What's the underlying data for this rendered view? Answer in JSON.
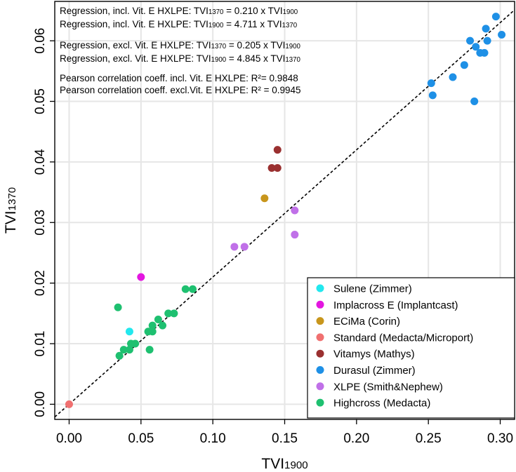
{
  "chart_data": {
    "type": "scatter",
    "xlabel": "TVI1900",
    "ylabel": "TVI1370",
    "xlim": [
      -0.01,
      0.31
    ],
    "ylim": [
      -0.0025,
      0.0665
    ],
    "xticks": [
      0.0,
      0.05,
      0.1,
      0.15,
      0.2,
      0.25,
      0.3
    ],
    "xtick_labels": [
      "0.00",
      "0.05",
      "0.10",
      "0.15",
      "0.20",
      "0.25",
      "0.30"
    ],
    "yticks": [
      0.0,
      0.01,
      0.02,
      0.03,
      0.04,
      0.05,
      0.06
    ],
    "ytick_labels": [
      "0.00",
      "0.01",
      "0.02",
      "0.03",
      "0.04",
      "0.05",
      "0.06"
    ],
    "grid": true,
    "reference_line": {
      "slope": 0.21,
      "intercept": 0,
      "style": "dashed"
    },
    "annotations": [
      "Regression, incl. Vit. E HXLPE: TVI1370 =  0.210 x TVI1900",
      "Regression, incl. Vit. E HXLPE: TVI1900 =  4.711 x TVI1370",
      "Regression, excl. Vit. E HXLPE: TVI1370 =  0.205 x TVI1900",
      "Regression, excl. Vit. E HXLPE: TVI1900 =  4.845 x TVI1370",
      "Pearson correlation coeff. incl. Vit. E HXLPE: R²=  0.9848",
      "Pearson correlation coeff. excl.Vit. E HXLPE: R² =  0.9945"
    ],
    "legend_position": "bottom-right",
    "series": [
      {
        "name": "Sulene (Zimmer)",
        "color": "#22e8ee",
        "points": [
          [
            0.042,
            0.012
          ]
        ]
      },
      {
        "name": "Implacross E (Implantcast)",
        "color": "#e316e0",
        "points": [
          [
            0.05,
            0.021
          ]
        ]
      },
      {
        "name": "ECiMa (Corin)",
        "color": "#c8961c",
        "points": [
          [
            0.136,
            0.034
          ]
        ]
      },
      {
        "name": "Standard (Medacta/Microport)",
        "color": "#f07070",
        "points": [
          [
            0.0,
            0.0
          ]
        ]
      },
      {
        "name": "Vitamys (Mathys)",
        "color": "#9a3030",
        "points": [
          [
            0.141,
            0.039
          ],
          [
            0.145,
            0.039
          ],
          [
            0.145,
            0.042
          ]
        ]
      },
      {
        "name": "Durasul (Zimmer)",
        "color": "#1e90e6",
        "points": [
          [
            0.252,
            0.053
          ],
          [
            0.253,
            0.051
          ],
          [
            0.267,
            0.054
          ],
          [
            0.275,
            0.056
          ],
          [
            0.279,
            0.06
          ],
          [
            0.282,
            0.05
          ],
          [
            0.283,
            0.059
          ],
          [
            0.286,
            0.058
          ],
          [
            0.289,
            0.058
          ],
          [
            0.29,
            0.062
          ],
          [
            0.291,
            0.06
          ],
          [
            0.297,
            0.064
          ],
          [
            0.301,
            0.061
          ]
        ]
      },
      {
        "name": "XLPE (Smith&Nephew)",
        "color": "#c070e8",
        "points": [
          [
            0.115,
            0.026
          ],
          [
            0.122,
            0.026
          ],
          [
            0.157,
            0.032
          ],
          [
            0.157,
            0.028
          ]
        ]
      },
      {
        "name": "Highcross (Medacta)",
        "color": "#1ec070",
        "points": [
          [
            0.034,
            0.016
          ],
          [
            0.035,
            0.008
          ],
          [
            0.038,
            0.009
          ],
          [
            0.042,
            0.009
          ],
          [
            0.043,
            0.01
          ],
          [
            0.046,
            0.01
          ],
          [
            0.055,
            0.012
          ],
          [
            0.056,
            0.009
          ],
          [
            0.058,
            0.013
          ],
          [
            0.058,
            0.012
          ],
          [
            0.062,
            0.014
          ],
          [
            0.065,
            0.013
          ],
          [
            0.069,
            0.015
          ],
          [
            0.073,
            0.015
          ],
          [
            0.081,
            0.019
          ],
          [
            0.086,
            0.019
          ]
        ]
      }
    ]
  }
}
